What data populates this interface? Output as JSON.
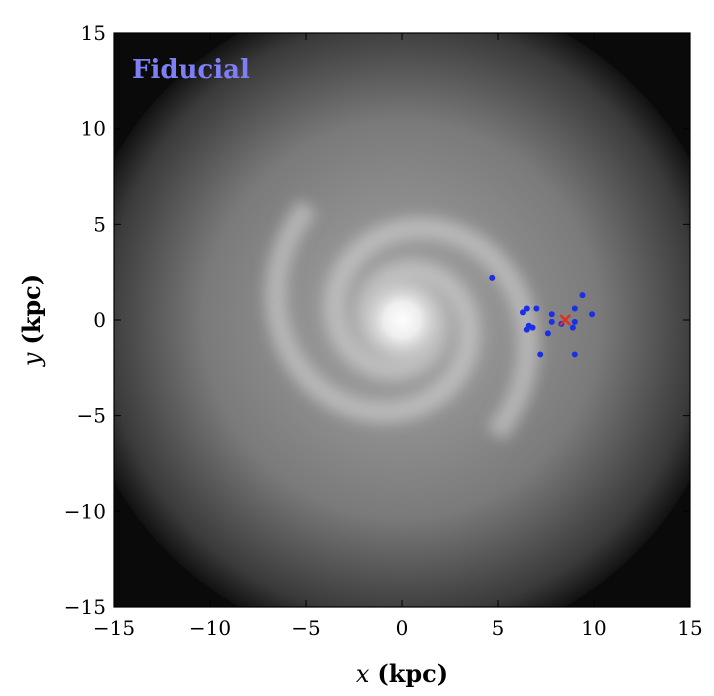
{
  "chart_data": {
    "type": "scatter",
    "title": "",
    "annotation": "Fiducial",
    "annotation_color": "#7f7ff5",
    "xlabel_var": "x",
    "xlabel_unit": "(kpc)",
    "ylabel_var": "y",
    "ylabel_unit": "(kpc)",
    "xlim": [
      -15,
      15
    ],
    "ylim": [
      -15,
      15
    ],
    "xticks": [
      -15,
      -10,
      -5,
      0,
      5,
      10,
      15
    ],
    "yticks": [
      -15,
      -10,
      -5,
      0,
      5,
      10,
      15
    ],
    "xtick_labels": [
      "−15",
      "−10",
      "−5",
      "0",
      "5",
      "10",
      "15"
    ],
    "ytick_labels": [
      "−15",
      "−10",
      "−5",
      "0",
      "5",
      "10",
      "15"
    ],
    "grid": false,
    "background": "grayscale spiral galaxy density map",
    "series": [
      {
        "marker": "dot",
        "color": "#1a2fe6",
        "points": [
          [
            4.7,
            2.2
          ],
          [
            6.3,
            0.4
          ],
          [
            6.5,
            0.6
          ],
          [
            7.0,
            0.6
          ],
          [
            6.6,
            -0.3
          ],
          [
            6.8,
            -0.4
          ],
          [
            6.5,
            -0.5
          ],
          [
            7.8,
            0.3
          ],
          [
            7.8,
            -0.1
          ],
          [
            8.3,
            -0.2
          ],
          [
            7.6,
            -0.7
          ],
          [
            7.2,
            -1.8
          ],
          [
            9.0,
            0.6
          ],
          [
            9.0,
            -0.1
          ],
          [
            8.9,
            -0.4
          ],
          [
            9.4,
            1.3
          ],
          [
            9.9,
            0.3
          ],
          [
            9.0,
            -1.8
          ]
        ]
      },
      {
        "marker": "x",
        "color": "#e0301f",
        "points": [
          [
            8.5,
            0.0
          ]
        ]
      }
    ]
  }
}
